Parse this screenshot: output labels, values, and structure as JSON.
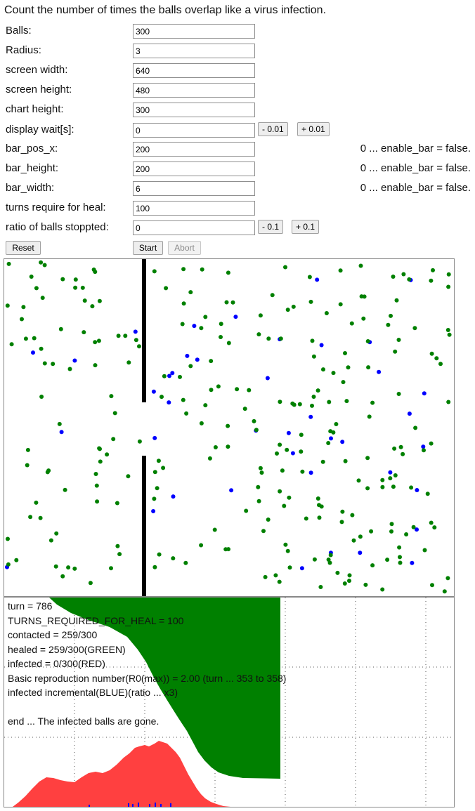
{
  "heading": "Count the number of times the balls overlap like a virus infection.",
  "fields": [
    {
      "label": "Balls:",
      "value": "300"
    },
    {
      "label": "Radius:",
      "value": "3"
    },
    {
      "label": "screen width:",
      "value": "640"
    },
    {
      "label": "screen height:",
      "value": "480"
    },
    {
      "label": "chart height:",
      "value": "300"
    },
    {
      "label": "display wait[s]:",
      "value": "0"
    },
    {
      "label": "bar_pos_x:",
      "value": "200"
    },
    {
      "label": "bar_height:",
      "value": "200"
    },
    {
      "label": "bar_width:",
      "value": "6"
    },
    {
      "label": "turns require for heal:",
      "value": "100"
    },
    {
      "label": "ratio of balls stoppted:",
      "value": "0"
    }
  ],
  "wait_buttons": {
    "minus": "- 0.01",
    "plus": "+ 0.01"
  },
  "ratio_buttons": {
    "minus": "- 0.1",
    "plus": "+ 0.1"
  },
  "bar_note": "0 ... enable_bar = false.",
  "buttons": {
    "reset": "Reset",
    "start": "Start",
    "abort": "Abort"
  },
  "colors": {
    "green": "#008000",
    "blue": "#0000ff",
    "red": "#ff4040",
    "bar": "#000000"
  },
  "stats": {
    "turn": "turn = 786",
    "turns_required": "TURNS_REQUIRED_FOR_HEAL = 100",
    "contacted": "contacted = 259/300",
    "healed": "healed = 259/300(GREEN)",
    "infected": "infected = 0/300(RED)",
    "r0": "Basic reproduction number(R0(max)) = 2.00 (turn ... 353 to 358)",
    "incremental": "infected incremental(BLUE)(ratio ... x3)",
    "end": "end ... The infected balls are gone."
  }
}
